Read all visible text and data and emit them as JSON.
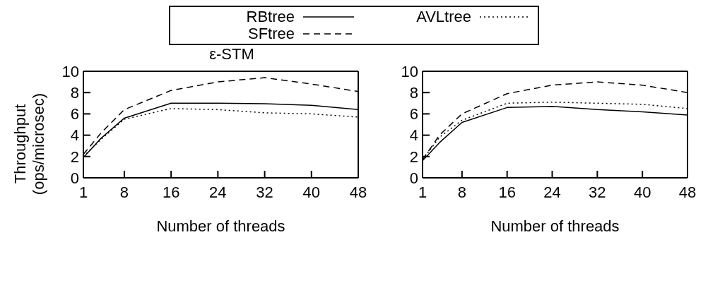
{
  "chart_data": [
    {
      "type": "line",
      "title": "ε-STM",
      "xlabel": "Number of threads",
      "ylabel": "Throughput (ops/microsec)",
      "x": [
        1,
        4,
        8,
        16,
        24,
        32,
        40,
        48
      ],
      "xlim": [
        1,
        48
      ],
      "xticks": [
        1,
        8,
        16,
        24,
        32,
        40,
        48
      ],
      "ylim": [
        0,
        10
      ],
      "yticks": [
        0,
        2,
        4,
        6,
        8,
        10
      ],
      "legend": "top",
      "marker": "none",
      "series": [
        {
          "name": "RBtree",
          "color": "#000000",
          "line_style": "solid",
          "values": [
            1.9,
            3.7,
            5.6,
            7.0,
            7.0,
            6.95,
            6.8,
            6.4
          ]
        },
        {
          "name": "AVLtree",
          "color": "#000000",
          "line_style": "dotted",
          "values": [
            2.0,
            3.6,
            5.5,
            6.5,
            6.4,
            6.1,
            6.0,
            5.7
          ]
        },
        {
          "name": "SFtree",
          "color": "#000000",
          "line_style": "dashed",
          "values": [
            2.2,
            4.2,
            6.4,
            8.2,
            9.0,
            9.4,
            8.8,
            8.1
          ]
        }
      ]
    },
    {
      "type": "line",
      "xlabel": "Number of threads",
      "x": [
        1,
        4,
        8,
        16,
        24,
        32,
        40,
        48
      ],
      "xlim": [
        1,
        48
      ],
      "xticks": [
        1,
        8,
        16,
        24,
        32,
        40,
        48
      ],
      "ylim": [
        0,
        10
      ],
      "yticks": [
        0,
        2,
        4,
        6,
        8,
        10
      ],
      "marker": "none",
      "series": [
        {
          "color": "#000000",
          "line_style": "solid",
          "values": [
            1.6,
            3.3,
            5.2,
            6.6,
            6.7,
            6.4,
            6.2,
            5.9
          ]
        },
        {
          "color": "#000000",
          "line_style": "dotted",
          "values": [
            1.7,
            3.8,
            5.4,
            7.0,
            7.1,
            7.0,
            6.9,
            6.5
          ]
        },
        {
          "color": "#000000",
          "line_style": "dashed",
          "values": [
            1.7,
            4.0,
            6.0,
            7.9,
            8.7,
            9.0,
            8.7,
            8.0
          ]
        }
      ]
    }
  ]
}
